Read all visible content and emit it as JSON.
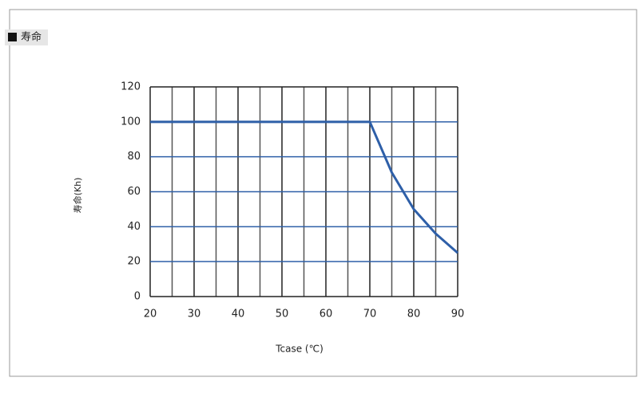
{
  "chart_data": {
    "type": "line",
    "title": "寿命",
    "xlabel": "Tcase (℃)",
    "ylabel": "寿命(Kh)",
    "x": [
      20,
      25,
      30,
      35,
      40,
      45,
      50,
      55,
      60,
      65,
      70,
      75,
      80,
      85,
      90
    ],
    "series": [
      {
        "name": "寿命",
        "color": "#2e5fa8",
        "values": [
          100,
          100,
          100,
          100,
          100,
          100,
          100,
          100,
          100,
          100,
          100,
          71,
          50,
          36,
          25
        ]
      }
    ],
    "xlim": [
      20,
      90
    ],
    "xticks": [
      20,
      30,
      40,
      50,
      60,
      70,
      80,
      90
    ],
    "xminor": [
      25,
      35,
      45,
      55,
      65,
      75,
      85
    ],
    "ylim": [
      0,
      120
    ],
    "yticks": [
      0,
      20,
      40,
      60,
      80,
      100,
      120
    ],
    "grid": true
  }
}
